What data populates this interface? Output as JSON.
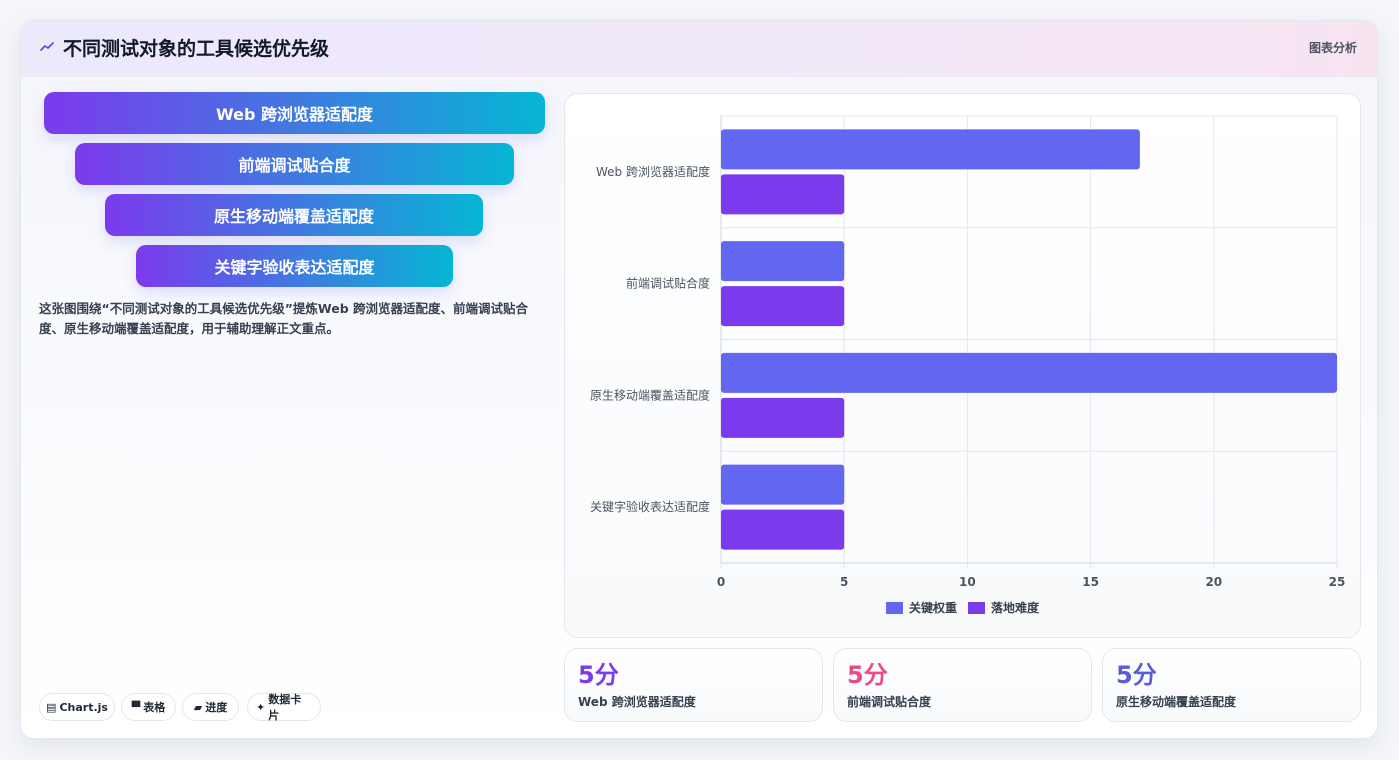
{
  "header": {
    "icon": "line-chart-icon",
    "title": "不同测试对象的工具候选优先级",
    "tag": "图表分析"
  },
  "funnel": {
    "items": [
      {
        "label": "Web 跨浏览器适配度"
      },
      {
        "label": "前端调试贴合度"
      },
      {
        "label": "原生移动端覆盖适配度"
      },
      {
        "label": "关键字验收表达适配度"
      }
    ]
  },
  "description": "这张图围绕“不同测试对象的工具候选优先级”提炼Web 跨浏览器适配度、前端调试贴合度、原生移动端覆盖适配度，用于辅助理解正文重点。",
  "chips": [
    {
      "icon": "chartjs-icon",
      "glyph": "▤",
      "label": "Chart.js"
    },
    {
      "icon": "table-icon",
      "glyph": "▀",
      "label": "表格"
    },
    {
      "icon": "progress-icon",
      "glyph": "▰",
      "label": "进度"
    },
    {
      "icon": "sparkle-icon",
      "glyph": "✦",
      "label": "数据卡片"
    }
  ],
  "stats": [
    {
      "value": "5分",
      "label": "Web 跨浏览器适配度",
      "color": "#7c3aed"
    },
    {
      "value": "5分",
      "label": "前端调试贴合度",
      "color": "#e84a8a"
    },
    {
      "value": "5分",
      "label": "原生移动端覆盖适配度",
      "color": "#5b5bd6"
    }
  ],
  "colors": {
    "series1": "#6366f1",
    "series2": "#7c3aed",
    "grid": "#e5e7eb",
    "axis_text": "#4b5563"
  },
  "chart_data": {
    "type": "bar",
    "orientation": "horizontal",
    "categories": [
      "Web 跨浏览器适配度",
      "前端调试贴合度",
      "原生移动端覆盖适配度",
      "关键字验收表达适配度"
    ],
    "series": [
      {
        "name": "关键权重",
        "values": [
          17,
          5,
          25,
          5
        ],
        "color": "#6366f1"
      },
      {
        "name": "落地难度",
        "values": [
          5,
          5,
          5,
          5
        ],
        "color": "#7c3aed"
      }
    ],
    "xlim": [
      0,
      25
    ],
    "xticks": [
      0,
      5,
      10,
      15,
      20,
      25
    ],
    "grid": true,
    "legend": "bottom"
  }
}
